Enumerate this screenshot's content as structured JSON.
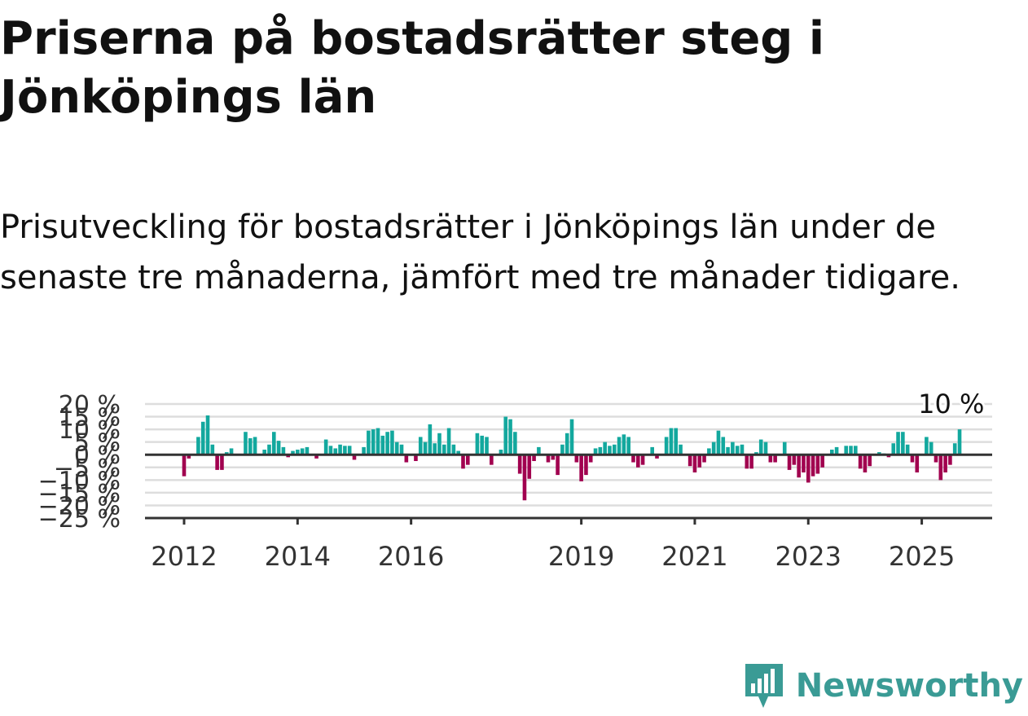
{
  "brand": {
    "name": "Newsworthy",
    "logo_icon": "newsworthy-bar-chart-icon",
    "color": "#3a9b95"
  },
  "chart_data": {
    "type": "bar",
    "title": "Priserna på bostadsrätter steg i Jönköpings län",
    "subtitle": "Prisutveckling för bostadsrätter i Jönköpings län under de senaste tre månaderna, jämfört med tre månader tidigare.",
    "xlabel": "",
    "ylabel": "",
    "ylim": [
      -25,
      20
    ],
    "y_ticks": [
      20,
      15,
      10,
      5,
      0,
      -5,
      -10,
      -15,
      -20,
      -25
    ],
    "y_tick_labels": [
      "20 %",
      "15 %",
      "10 %",
      "5 %",
      "0 %",
      "−5 %",
      "−10 %",
      "−15 %",
      "−20 %",
      "−25 %"
    ],
    "x_ticks": [
      2012,
      2014,
      2016,
      2019,
      2021,
      2023,
      2025
    ],
    "x_tick_labels": [
      "2012",
      "2014",
      "2016",
      "2019",
      "2021",
      "2023",
      "2025"
    ],
    "x_start": "2012-01",
    "grid": true,
    "colors": {
      "positive": "#13a89e",
      "negative": "#a1004f",
      "grid": "#dddddd",
      "axis": "#333333"
    },
    "annotation": {
      "text": "10 %",
      "value": 10,
      "date": "2025-07"
    },
    "values": [
      -8.5,
      -1.5,
      0,
      7,
      13,
      15.5,
      4,
      -6,
      -6,
      1,
      2.5,
      0,
      0,
      9,
      6.5,
      7,
      0,
      2,
      4,
      9,
      5.5,
      3,
      -1,
      1.5,
      2,
      2.5,
      3,
      0,
      -1.5,
      0,
      6,
      3.5,
      2.5,
      4,
      3.5,
      3.5,
      -2,
      0,
      3,
      9.5,
      10,
      10.5,
      7.5,
      9,
      9.5,
      5,
      4,
      -3,
      0,
      -2.5,
      7,
      5,
      12,
      4.5,
      8.5,
      4,
      10.5,
      4,
      1.5,
      -5.5,
      -4,
      0,
      8.5,
      7.5,
      7,
      -4,
      0,
      2,
      15,
      14,
      9,
      -7.5,
      -18,
      -9.5,
      -2.5,
      3,
      0,
      -3,
      -2,
      -8,
      4,
      8.5,
      14,
      -3,
      -10.5,
      -8,
      -3,
      2.5,
      3,
      5,
      3.5,
      4,
      7,
      8,
      7,
      -3,
      -5,
      -4,
      0,
      3,
      -1.5,
      0,
      7,
      10.5,
      10.5,
      4,
      0,
      -4.5,
      -7,
      -5,
      -3,
      2.5,
      5,
      9.5,
      7,
      3,
      5,
      3.5,
      4,
      -5.5,
      -5.5,
      1,
      6,
      5,
      -3,
      -3,
      0,
      5,
      -6,
      -4,
      -9,
      -7,
      -11,
      -8.5,
      -7.5,
      -5,
      0,
      2,
      3,
      0,
      3.5,
      3.5,
      3.5,
      -5.5,
      -7,
      -4.5,
      0,
      1,
      0.5,
      -1,
      4.5,
      9,
      9,
      4,
      -3,
      -7,
      0,
      7,
      5,
      -3,
      -10,
      -7,
      -4,
      4.5,
      10
    ]
  }
}
